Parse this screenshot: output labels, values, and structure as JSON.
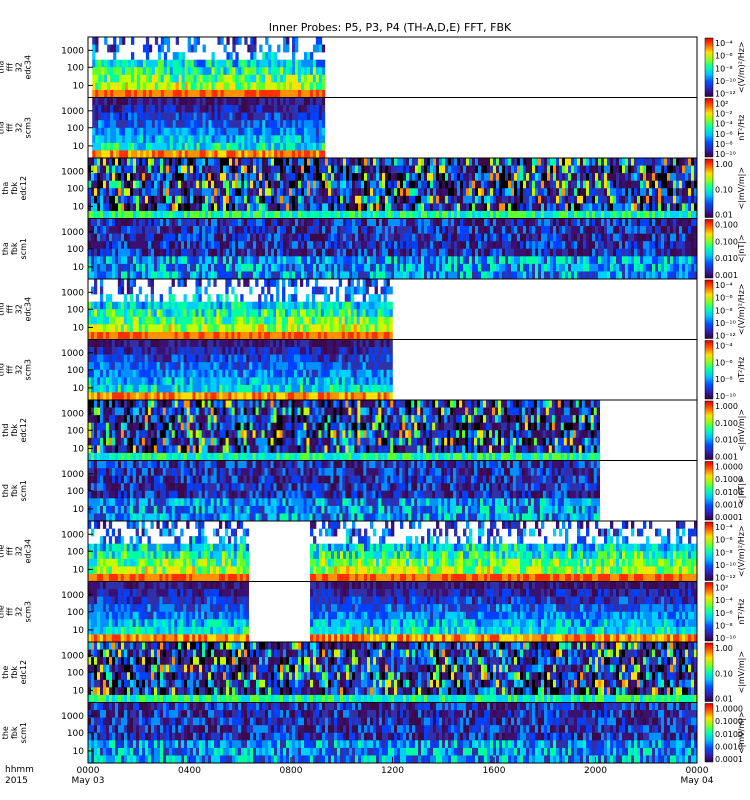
{
  "chart_data": {
    "type": "heatmap",
    "title": "Inner Probes: P5, P3, P4 (TH-A,D,E) FFT, FBK",
    "x_ticks": [
      {
        "t": 0,
        "label": "0000",
        "sub": "May 03"
      },
      {
        "t": 240,
        "label": "0400",
        "sub": ""
      },
      {
        "t": 480,
        "label": "0800",
        "sub": ""
      },
      {
        "t": 720,
        "label": "1200",
        "sub": ""
      },
      {
        "t": 960,
        "label": "1600",
        "sub": ""
      },
      {
        "t": 1200,
        "label": "2000",
        "sub": ""
      },
      {
        "t": 1440,
        "label": "0000",
        "sub": "May 04"
      }
    ],
    "x_label": "hhmm",
    "x_label_year": "2015",
    "xlim_minutes": [
      0,
      1440
    ],
    "y_ticks": [
      "1000",
      "100",
      "10"
    ],
    "panels": [
      {
        "probe": "tha",
        "label": [
          "tha",
          "fff",
          "32",
          "edc34"
        ],
        "cb_unit": "<(V/m)²/Hz>",
        "cb_ticks": [
          "10⁻⁴",
          "10⁻⁶",
          "10⁻⁸",
          "10⁻¹⁰",
          "10⁻¹²"
        ],
        "data_segments": [
          [
            10,
            560
          ]
        ],
        "style": "efff"
      },
      {
        "probe": "tha",
        "label": [
          "tha",
          "fff",
          "32",
          "scm3"
        ],
        "cb_unit": "nT²/Hz",
        "cb_ticks": [
          "10²",
          "10⁻²",
          "10⁻⁴",
          "10⁻⁶",
          "10⁻⁸",
          "10⁻¹⁰"
        ],
        "data_segments": [
          [
            10,
            560
          ]
        ],
        "style": "bfff"
      },
      {
        "probe": "tha",
        "label": [
          "tha",
          "fbk",
          "edc12"
        ],
        "cb_unit": "<|mV/m|>",
        "cb_ticks": [
          "1.00",
          "0.10",
          "0.01"
        ],
        "data_segments": [
          [
            0,
            1440
          ]
        ],
        "style": "efbk"
      },
      {
        "probe": "tha",
        "label": [
          "tha",
          "fbk",
          "scm1"
        ],
        "cb_unit": "<|nT|>",
        "cb_ticks": [
          "0.100",
          "0.100",
          "0.010",
          "0.001"
        ],
        "data_segments": [
          [
            0,
            1440
          ]
        ],
        "style": "bfbk"
      },
      {
        "probe": "thd",
        "label": [
          "thd",
          "fff",
          "32",
          "edc34"
        ],
        "cb_unit": "<(V/m)²/Hz>",
        "cb_ticks": [
          "10⁻⁴",
          "10⁻⁶",
          "10⁻⁸",
          "10⁻¹⁰",
          "10⁻¹²"
        ],
        "data_segments": [
          [
            0,
            720
          ]
        ],
        "style": "efff"
      },
      {
        "probe": "thd",
        "label": [
          "thd",
          "fff",
          "32",
          "scm3"
        ],
        "cb_unit": "nT²/Hz",
        "cb_ticks": [
          "10⁻⁴",
          "10⁻⁶",
          "10⁻⁸",
          "10⁻¹⁰"
        ],
        "data_segments": [
          [
            0,
            720
          ]
        ],
        "style": "bfff"
      },
      {
        "probe": "thd",
        "label": [
          "thd",
          "fbk",
          "edc12"
        ],
        "cb_unit": "<|mV/m|>",
        "cb_ticks": [
          "1.000",
          "0.100",
          "0.010",
          "0.001"
        ],
        "data_segments": [
          [
            0,
            1210
          ]
        ],
        "style": "efbk"
      },
      {
        "probe": "thd",
        "label": [
          "thd",
          "fbk",
          "scm1"
        ],
        "cb_unit": "<|nT|>",
        "cb_ticks": [
          "1.0000",
          "0.1000",
          "0.0100",
          "0.0010",
          "0.0001"
        ],
        "data_segments": [
          [
            0,
            1210
          ]
        ],
        "style": "bfbk"
      },
      {
        "probe": "the",
        "label": [
          "the",
          "fff",
          "32",
          "edc34"
        ],
        "cb_unit": "<(V/m)²/Hz>",
        "cb_ticks": [
          "10⁻⁴",
          "10⁻⁶",
          "10⁻⁸",
          "10⁻¹⁰",
          "10⁻¹²"
        ],
        "data_segments": [
          [
            0,
            380
          ],
          [
            525,
            1440
          ]
        ],
        "style": "efff"
      },
      {
        "probe": "the",
        "label": [
          "the",
          "fff",
          "32",
          "scm3"
        ],
        "cb_unit": "nT²/Hz",
        "cb_ticks": [
          "10²",
          "10⁻⁴",
          "10⁻⁶",
          "10⁻⁸",
          "10⁻¹⁰"
        ],
        "data_segments": [
          [
            0,
            380
          ],
          [
            525,
            1440
          ]
        ],
        "style": "bfff"
      },
      {
        "probe": "the",
        "label": [
          "the",
          "fbk",
          "edc12"
        ],
        "cb_unit": "<|mV/m|>",
        "cb_ticks": [
          "1.00",
          "0.10",
          "0.01"
        ],
        "data_segments": [
          [
            0,
            1440
          ]
        ],
        "style": "efbk"
      },
      {
        "probe": "the",
        "label": [
          "the",
          "fbk",
          "scm1"
        ],
        "cb_unit": "<|mV/m|>",
        "cb_ticks": [
          "1.0000",
          "0.1000",
          "0.0100",
          "0.0010",
          "0.0001"
        ],
        "data_segments": [
          [
            0,
            1440
          ]
        ],
        "style": "bfbk"
      }
    ]
  }
}
